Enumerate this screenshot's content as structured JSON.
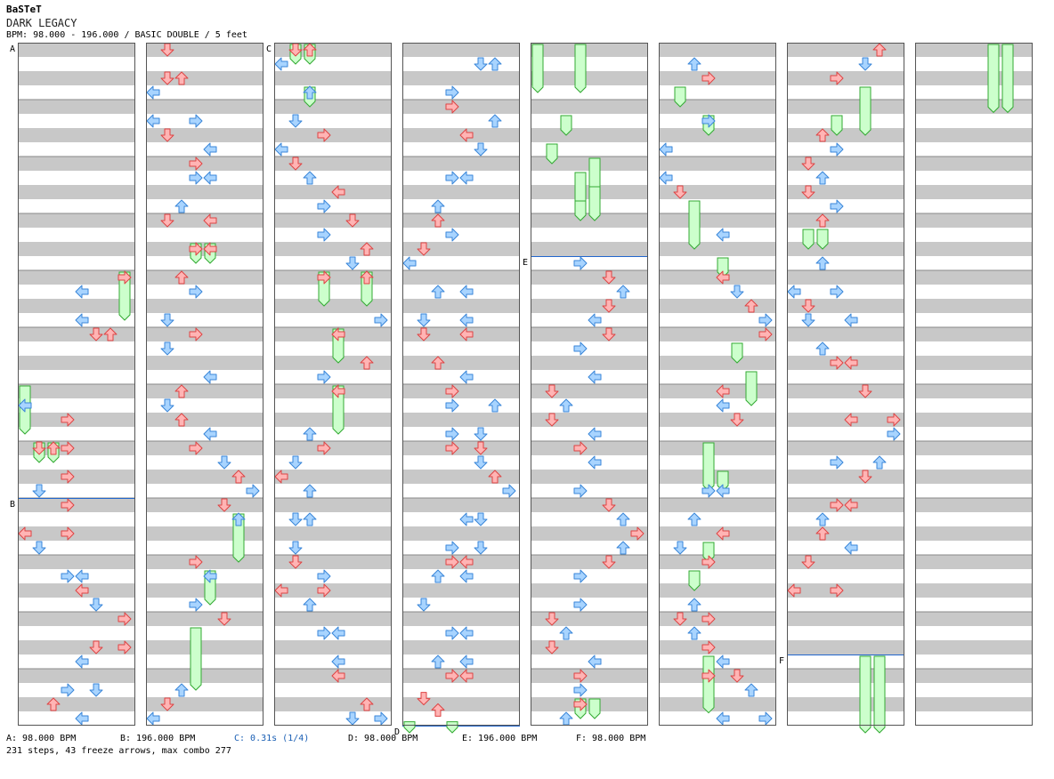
{
  "song": {
    "artist": "BaSTeT",
    "title": "DARK LEGACY",
    "info": "BPM: 98.000 - 196.000 / BASIC DOUBLE / 5 feet"
  },
  "legend": [
    {
      "text": "A: 98.000 BPM",
      "highlight": false
    },
    {
      "text": "B: 196.000 BPM",
      "highlight": false
    },
    {
      "text": "C: 0.31s (1/4)",
      "highlight": true
    },
    {
      "text": "D: 98.000 BPM",
      "highlight": false
    },
    {
      "text": "E: 196.000 BPM",
      "highlight": false
    },
    {
      "text": "F: 98.000 BPM",
      "highlight": false
    }
  ],
  "summary": "231 steps, 43 freeze arrows, max combo 277",
  "colors": {
    "stripe": "#c8c8c8",
    "border": "#555555",
    "divider": "#888888",
    "marker_line": "#2266cc",
    "red_fill": "#ffb4b4",
    "red_stroke": "#dd4444",
    "blue_fill": "#a8d4ff",
    "blue_stroke": "#3a86d8",
    "freeze_fill": "#ccffcc",
    "freeze_stroke": "#33aa33"
  },
  "markers": [
    {
      "label": "A",
      "column": 0,
      "measure": 0
    },
    {
      "label": "B",
      "column": 0,
      "measure": 8
    },
    {
      "label": "C",
      "column": 2,
      "measure": 0
    },
    {
      "label": "D",
      "column": 3,
      "measure": 12
    },
    {
      "label": "E",
      "column": 4,
      "measure": 3.75
    },
    {
      "label": "F",
      "column": 6,
      "measure": 10.75
    }
  ],
  "chart_layout": {
    "columns": 8,
    "measures_per_column": 12,
    "lanes": 8
  },
  "arrows": [
    [
      0,
      4.0,
      7,
      0
    ],
    [
      0,
      4.25,
      4,
      0
    ],
    [
      0,
      4.75,
      4,
      0
    ],
    [
      0,
      5.0,
      5,
      0
    ],
    [
      0,
      5.0,
      6,
      0
    ],
    [
      0,
      6.25,
      0,
      0
    ],
    [
      0,
      6.5,
      3,
      0
    ],
    [
      0,
      7.0,
      3,
      0
    ],
    [
      0,
      7.0,
      1,
      0
    ],
    [
      0,
      7.0,
      2,
      0
    ],
    [
      0,
      7.5,
      3,
      0
    ],
    [
      0,
      7.75,
      1,
      0
    ],
    [
      0,
      8.0,
      3,
      0
    ],
    [
      0,
      8.5,
      0,
      0
    ],
    [
      0,
      8.5,
      3,
      0
    ],
    [
      0,
      8.75,
      1,
      0
    ],
    [
      0,
      9.25,
      3,
      0
    ],
    [
      0,
      9.25,
      4,
      0
    ],
    [
      0,
      9.5,
      4,
      0
    ],
    [
      0,
      9.75,
      5,
      0
    ],
    [
      0,
      10.0,
      7,
      0
    ],
    [
      0,
      10.5,
      5,
      0
    ],
    [
      0,
      10.5,
      7,
      0
    ],
    [
      0,
      10.75,
      4,
      0
    ],
    [
      0,
      11.25,
      3,
      0
    ],
    [
      0,
      11.25,
      5,
      0
    ],
    [
      0,
      11.5,
      2,
      0
    ],
    [
      0,
      11.75,
      4,
      0
    ],
    [
      1,
      0.0,
      1,
      0
    ],
    [
      1,
      0.5,
      1,
      0
    ],
    [
      1,
      0.5,
      2,
      0
    ],
    [
      1,
      0.75,
      0,
      0
    ],
    [
      1,
      1.25,
      0,
      0
    ],
    [
      1,
      1.25,
      3,
      0
    ],
    [
      1,
      1.5,
      1,
      0
    ],
    [
      1,
      1.75,
      4,
      0
    ],
    [
      1,
      2.0,
      3,
      0
    ],
    [
      1,
      2.25,
      3,
      0
    ],
    [
      1,
      2.25,
      4,
      0
    ],
    [
      1,
      2.75,
      2,
      0
    ],
    [
      1,
      3.0,
      1,
      0
    ],
    [
      1,
      3.0,
      4,
      0
    ],
    [
      1,
      3.5,
      3,
      0
    ],
    [
      1,
      3.5,
      4,
      0
    ],
    [
      1,
      4.0,
      2,
      0
    ],
    [
      1,
      4.25,
      3,
      0
    ],
    [
      1,
      4.75,
      1,
      0
    ],
    [
      1,
      5.0,
      3,
      0
    ],
    [
      1,
      5.25,
      1,
      0
    ],
    [
      1,
      5.75,
      4,
      0
    ],
    [
      1,
      6.0,
      2,
      0
    ],
    [
      1,
      6.25,
      1,
      0
    ],
    [
      1,
      6.5,
      2,
      0
    ],
    [
      1,
      6.75,
      4,
      0
    ],
    [
      1,
      7.0,
      3,
      0
    ],
    [
      1,
      7.25,
      5,
      0
    ],
    [
      1,
      7.5,
      6,
      0
    ],
    [
      1,
      7.75,
      7,
      0
    ],
    [
      1,
      8.0,
      5,
      0
    ],
    [
      1,
      8.25,
      6,
      0
    ],
    [
      1,
      9.0,
      3,
      0
    ],
    [
      1,
      9.25,
      4,
      0
    ],
    [
      1,
      9.75,
      3,
      0
    ],
    [
      1,
      10.0,
      5,
      0
    ],
    [
      1,
      11.25,
      2,
      0
    ],
    [
      1,
      11.5,
      1,
      0
    ],
    [
      1,
      11.75,
      0,
      0
    ],
    [
      2,
      0.0,
      1,
      0
    ],
    [
      2,
      0.0,
      2,
      0
    ],
    [
      2,
      0.25,
      0,
      0
    ],
    [
      2,
      0.75,
      2,
      0
    ],
    [
      2,
      1.25,
      1,
      0
    ],
    [
      2,
      1.5,
      3,
      0
    ],
    [
      2,
      1.75,
      0,
      0
    ],
    [
      2,
      2.0,
      1,
      0
    ],
    [
      2,
      2.25,
      2,
      0
    ],
    [
      2,
      2.5,
      4,
      0
    ],
    [
      2,
      2.75,
      3,
      0
    ],
    [
      2,
      3.0,
      5,
      0
    ],
    [
      2,
      3.25,
      3,
      0
    ],
    [
      2,
      3.5,
      6,
      0
    ],
    [
      2,
      3.75,
      5,
      0
    ],
    [
      2,
      4.0,
      3,
      0
    ],
    [
      2,
      4.0,
      6,
      0
    ],
    [
      2,
      4.75,
      7,
      0
    ],
    [
      2,
      5.0,
      4,
      0
    ],
    [
      2,
      5.5,
      6,
      0
    ],
    [
      2,
      5.75,
      3,
      0
    ],
    [
      2,
      6.0,
      4,
      0
    ],
    [
      2,
      6.75,
      2,
      0
    ],
    [
      2,
      7.0,
      3,
      0
    ],
    [
      2,
      7.25,
      1,
      0
    ],
    [
      2,
      7.5,
      0,
      0
    ],
    [
      2,
      7.75,
      2,
      0
    ],
    [
      2,
      8.25,
      1,
      0
    ],
    [
      2,
      8.25,
      2,
      0
    ],
    [
      2,
      8.75,
      1,
      0
    ],
    [
      2,
      9.0,
      1,
      0
    ],
    [
      2,
      9.25,
      3,
      0
    ],
    [
      2,
      9.5,
      3,
      0
    ],
    [
      2,
      9.5,
      0,
      0
    ],
    [
      2,
      9.75,
      2,
      0
    ],
    [
      2,
      10.25,
      3,
      0
    ],
    [
      2,
      10.25,
      4,
      0
    ],
    [
      2,
      10.75,
      4,
      0
    ],
    [
      2,
      11.0,
      4,
      0
    ],
    [
      2,
      11.5,
      6,
      0
    ],
    [
      2,
      11.75,
      5,
      0
    ],
    [
      2,
      11.75,
      7,
      0
    ],
    [
      3,
      0.25,
      5,
      0
    ],
    [
      3,
      0.25,
      6,
      0
    ],
    [
      3,
      0.75,
      3,
      0
    ],
    [
      3,
      1.0,
      3,
      0
    ],
    [
      3,
      1.25,
      6,
      0
    ],
    [
      3,
      1.5,
      4,
      0
    ],
    [
      3,
      1.75,
      5,
      0
    ],
    [
      3,
      2.25,
      3,
      0
    ],
    [
      3,
      2.25,
      4,
      0
    ],
    [
      3,
      2.75,
      2,
      0
    ],
    [
      3,
      3.0,
      2,
      0
    ],
    [
      3,
      3.25,
      3,
      0
    ],
    [
      3,
      3.5,
      1,
      0
    ],
    [
      3,
      3.75,
      0,
      0
    ],
    [
      3,
      4.25,
      2,
      0
    ],
    [
      3,
      4.25,
      4,
      0
    ],
    [
      3,
      4.75,
      1,
      0
    ],
    [
      3,
      4.75,
      4,
      0
    ],
    [
      3,
      5.0,
      1,
      0
    ],
    [
      3,
      5.0,
      4,
      0
    ],
    [
      3,
      5.5,
      2,
      0
    ],
    [
      3,
      5.75,
      4,
      0
    ],
    [
      3,
      6.0,
      3,
      0
    ],
    [
      3,
      6.25,
      3,
      0
    ],
    [
      3,
      6.25,
      6,
      0
    ],
    [
      3,
      6.75,
      3,
      0
    ],
    [
      3,
      6.75,
      5,
      0
    ],
    [
      3,
      7.0,
      3,
      0
    ],
    [
      3,
      7.0,
      5,
      0
    ],
    [
      3,
      7.25,
      5,
      0
    ],
    [
      3,
      7.5,
      6,
      0
    ],
    [
      3,
      7.75,
      7,
      0
    ],
    [
      3,
      8.25,
      4,
      0
    ],
    [
      3,
      8.25,
      5,
      0
    ],
    [
      3,
      8.75,
      3,
      0
    ],
    [
      3,
      8.75,
      5,
      0
    ],
    [
      3,
      9.0,
      3,
      0
    ],
    [
      3,
      9.0,
      4,
      0
    ],
    [
      3,
      9.25,
      2,
      0
    ],
    [
      3,
      9.25,
      4,
      0
    ],
    [
      3,
      9.75,
      1,
      0
    ],
    [
      3,
      10.25,
      3,
      0
    ],
    [
      3,
      10.25,
      4,
      0
    ],
    [
      3,
      10.75,
      2,
      0
    ],
    [
      3,
      10.75,
      4,
      0
    ],
    [
      3,
      11.0,
      3,
      0
    ],
    [
      3,
      11.0,
      4,
      0
    ],
    [
      3,
      11.4,
      1,
      0
    ],
    [
      3,
      11.6,
      2,
      0
    ],
    [
      4,
      3.75,
      3,
      0
    ],
    [
      4,
      4.0,
      5,
      0
    ],
    [
      4,
      4.25,
      6,
      0
    ],
    [
      4,
      4.5,
      5,
      0
    ],
    [
      4,
      4.75,
      4,
      0
    ],
    [
      4,
      5.0,
      5,
      0
    ],
    [
      4,
      5.25,
      3,
      0
    ],
    [
      4,
      5.75,
      4,
      0
    ],
    [
      4,
      6.0,
      1,
      0
    ],
    [
      4,
      6.25,
      2,
      0
    ],
    [
      4,
      6.5,
      1,
      0
    ],
    [
      4,
      6.75,
      4,
      0
    ],
    [
      4,
      7.0,
      3,
      0
    ],
    [
      4,
      7.25,
      4,
      0
    ],
    [
      4,
      7.75,
      3,
      0
    ],
    [
      4,
      8.0,
      5,
      0
    ],
    [
      4,
      8.25,
      6,
      0
    ],
    [
      4,
      8.5,
      7,
      0
    ],
    [
      4,
      8.75,
      6,
      0
    ],
    [
      4,
      9.0,
      5,
      0
    ],
    [
      4,
      9.25,
      3,
      0
    ],
    [
      4,
      9.75,
      3,
      0
    ],
    [
      4,
      10.0,
      1,
      0
    ],
    [
      4,
      10.25,
      2,
      0
    ],
    [
      4,
      10.5,
      1,
      0
    ],
    [
      4,
      10.75,
      4,
      0
    ],
    [
      4,
      11.0,
      3,
      0
    ],
    [
      4,
      11.25,
      3,
      0
    ],
    [
      4,
      11.5,
      3,
      0
    ],
    [
      4,
      11.75,
      2,
      0
    ],
    [
      5,
      0.25,
      2,
      0
    ],
    [
      5,
      0.5,
      3,
      0
    ],
    [
      5,
      1.25,
      3,
      0
    ],
    [
      5,
      1.75,
      0,
      0
    ],
    [
      5,
      2.25,
      0,
      0
    ],
    [
      5,
      2.5,
      1,
      0
    ],
    [
      5,
      3.25,
      4,
      0
    ],
    [
      5,
      4.0,
      4,
      0
    ],
    [
      5,
      4.25,
      5,
      0
    ],
    [
      5,
      4.5,
      6,
      0
    ],
    [
      5,
      4.75,
      7,
      0
    ],
    [
      5,
      5.0,
      7,
      0
    ],
    [
      5,
      6.0,
      4,
      0
    ],
    [
      5,
      6.25,
      4,
      0
    ],
    [
      5,
      6.5,
      5,
      0
    ],
    [
      5,
      7.75,
      3,
      0
    ],
    [
      5,
      7.75,
      4,
      0
    ],
    [
      5,
      8.25,
      2,
      0
    ],
    [
      5,
      8.5,
      4,
      0
    ],
    [
      5,
      8.75,
      1,
      0
    ],
    [
      5,
      9.0,
      3,
      0
    ],
    [
      5,
      9.75,
      2,
      0
    ],
    [
      5,
      10.0,
      1,
      0
    ],
    [
      5,
      10.0,
      3,
      0
    ],
    [
      5,
      10.25,
      2,
      0
    ],
    [
      5,
      10.5,
      3,
      0
    ],
    [
      5,
      10.75,
      4,
      0
    ],
    [
      5,
      11.0,
      3,
      0
    ],
    [
      5,
      11.0,
      5,
      0
    ],
    [
      5,
      11.25,
      6,
      0
    ],
    [
      5,
      11.75,
      4,
      0
    ],
    [
      5,
      11.75,
      7,
      0
    ],
    [
      6,
      0.0,
      6,
      0
    ],
    [
      6,
      0.25,
      5,
      0
    ],
    [
      6,
      0.5,
      3,
      0
    ],
    [
      6,
      1.5,
      2,
      0
    ],
    [
      6,
      1.75,
      3,
      0
    ],
    [
      6,
      2.0,
      1,
      0
    ],
    [
      6,
      2.25,
      2,
      0
    ],
    [
      6,
      2.5,
      1,
      0
    ],
    [
      6,
      2.75,
      3,
      0
    ],
    [
      6,
      3.0,
      2,
      0
    ],
    [
      6,
      3.75,
      2,
      0
    ],
    [
      6,
      4.25,
      0,
      0
    ],
    [
      6,
      4.25,
      3,
      0
    ],
    [
      6,
      4.5,
      1,
      0
    ],
    [
      6,
      4.75,
      1,
      0
    ],
    [
      6,
      4.75,
      4,
      0
    ],
    [
      6,
      5.25,
      2,
      0
    ],
    [
      6,
      5.5,
      3,
      0
    ],
    [
      6,
      5.5,
      4,
      0
    ],
    [
      6,
      6.0,
      5,
      0
    ],
    [
      6,
      6.5,
      4,
      0
    ],
    [
      6,
      6.5,
      7,
      0
    ],
    [
      6,
      6.75,
      7,
      0
    ],
    [
      6,
      7.25,
      3,
      0
    ],
    [
      6,
      7.25,
      6,
      0
    ],
    [
      6,
      7.5,
      5,
      0
    ],
    [
      6,
      8.0,
      3,
      0
    ],
    [
      6,
      8.0,
      4,
      0
    ],
    [
      6,
      8.25,
      2,
      0
    ],
    [
      6,
      8.5,
      2,
      0
    ],
    [
      6,
      8.75,
      4,
      0
    ],
    [
      6,
      9.0,
      1,
      0
    ],
    [
      6,
      9.5,
      0,
      0
    ],
    [
      6,
      9.5,
      3,
      0
    ]
  ],
  "freezes": [
    [
      0,
      4.0,
      4.75,
      7
    ],
    [
      0,
      6.0,
      6.75,
      0
    ],
    [
      0,
      7.0,
      7.25,
      1
    ],
    [
      0,
      7.0,
      7.25,
      2
    ],
    [
      1,
      3.5,
      3.75,
      3
    ],
    [
      1,
      3.5,
      3.75,
      4
    ],
    [
      1,
      8.25,
      9.0,
      6
    ],
    [
      1,
      9.25,
      9.75,
      4
    ],
    [
      1,
      10.25,
      11.25,
      3
    ],
    [
      2,
      0.0,
      0.25,
      1
    ],
    [
      2,
      0.0,
      0.25,
      2
    ],
    [
      2,
      0.75,
      1.0,
      2
    ],
    [
      2,
      4.0,
      4.5,
      3
    ],
    [
      2,
      4.0,
      4.5,
      6
    ],
    [
      2,
      5.0,
      5.5,
      4
    ],
    [
      2,
      6.0,
      6.75,
      4
    ],
    [
      3,
      11.9,
      12.4,
      0
    ],
    [
      3,
      11.9,
      12.4,
      3
    ],
    [
      4,
      0.0,
      0.75,
      0
    ],
    [
      4,
      0.0,
      0.75,
      3
    ],
    [
      4,
      1.25,
      1.5,
      2
    ],
    [
      4,
      1.75,
      2.0,
      1
    ],
    [
      4,
      2.0,
      2.5,
      4
    ],
    [
      4,
      2.25,
      2.75,
      3
    ],
    [
      4,
      2.5,
      3.0,
      4
    ],
    [
      4,
      2.75,
      3.0,
      3
    ],
    [
      4,
      11.5,
      11.75,
      3
    ],
    [
      4,
      11.5,
      11.75,
      4
    ],
    [
      5,
      0.75,
      1.0,
      1
    ],
    [
      5,
      1.25,
      1.5,
      3
    ],
    [
      5,
      2.75,
      3.5,
      2
    ],
    [
      5,
      3.75,
      4.0,
      4
    ],
    [
      5,
      5.25,
      5.5,
      5
    ],
    [
      5,
      5.75,
      6.25,
      6
    ],
    [
      5,
      7.0,
      7.75,
      3
    ],
    [
      5,
      7.5,
      7.75,
      4
    ],
    [
      5,
      8.75,
      9.0,
      3
    ],
    [
      5,
      9.25,
      9.5,
      2
    ],
    [
      5,
      10.75,
      11.65,
      3
    ],
    [
      6,
      0.75,
      1.5,
      5
    ],
    [
      6,
      1.25,
      1.5,
      3
    ],
    [
      6,
      3.25,
      3.5,
      1
    ],
    [
      6,
      3.25,
      3.5,
      2
    ],
    [
      6,
      10.75,
      12.2,
      5
    ],
    [
      6,
      10.75,
      12.2,
      6
    ],
    [
      7,
      0.0,
      1.1,
      5
    ],
    [
      7,
      0.0,
      1.1,
      6
    ]
  ]
}
